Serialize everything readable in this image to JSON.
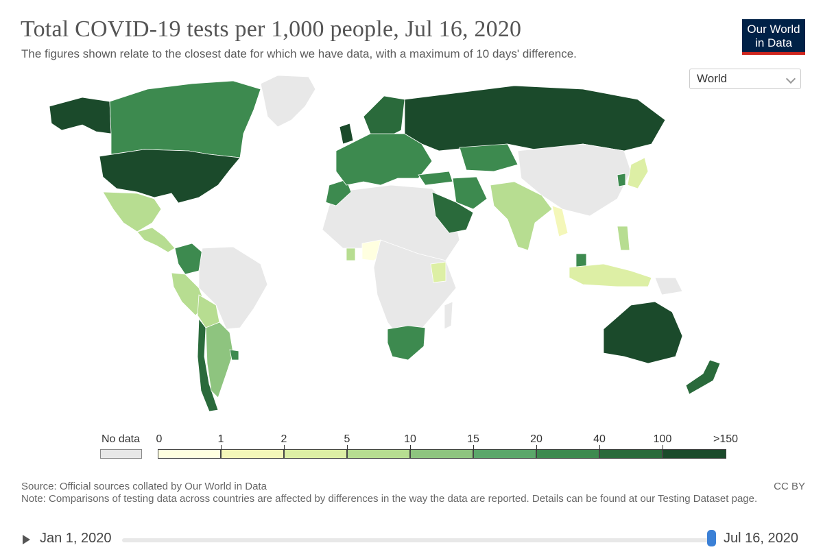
{
  "header": {
    "title": "Total COVID-19 tests per 1,000 people, Jul 16, 2020",
    "subtitle": "The figures shown relate to the closest date for which we have data, with a maximum of 10 days' difference."
  },
  "logo": {
    "line1": "Our World",
    "line2": "in Data"
  },
  "region_selector": {
    "selected": "World"
  },
  "legend": {
    "no_data_label": "No data",
    "thresholds": [
      "0",
      "1",
      "2",
      "5",
      "10",
      "15",
      "20",
      "40",
      "100",
      ">150"
    ],
    "colors": [
      "#ffffe0",
      "#f4f7b9",
      "#ddefa5",
      "#b7dd91",
      "#8ec47f",
      "#5ba76a",
      "#3d8a4f",
      "#2a6a3b",
      "#1b4a2b"
    ],
    "no_data_color": "#e8e8e8"
  },
  "footer": {
    "source": "Source: Official sources collated by Our World in Data",
    "note": "Note: Comparisons of testing data across countries are affected by differences in the way the data are reported. Details can be found at our Testing Dataset page.",
    "license": "CC BY"
  },
  "timeline": {
    "start": "Jan 1, 2020",
    "end": "Jul 16, 2020"
  },
  "map_regions": [
    {
      "name": "canada",
      "color": "#3d8a4f"
    },
    {
      "name": "alaska",
      "color": "#1b4a2b"
    },
    {
      "name": "greenland",
      "color": "#e8e8e8"
    },
    {
      "name": "usa",
      "color": "#1b4a2b"
    },
    {
      "name": "mexico",
      "color": "#b7dd91"
    },
    {
      "name": "central-america",
      "color": "#b7dd91"
    },
    {
      "name": "colombia",
      "color": "#3d8a4f"
    },
    {
      "name": "venezuela-brazil",
      "color": "#e8e8e8"
    },
    {
      "name": "peru",
      "color": "#b7dd91"
    },
    {
      "name": "bolivia",
      "color": "#b7dd91"
    },
    {
      "name": "chile",
      "color": "#2a6a3b"
    },
    {
      "name": "argentina",
      "color": "#8ec47f"
    },
    {
      "name": "uruguay",
      "color": "#3d8a4f"
    },
    {
      "name": "north-africa",
      "color": "#e8e8e8"
    },
    {
      "name": "morocco",
      "color": "#3d8a4f"
    },
    {
      "name": "nigeria",
      "color": "#ffffe0"
    },
    {
      "name": "ghana",
      "color": "#b7dd91"
    },
    {
      "name": "central-africa",
      "color": "#e8e8e8"
    },
    {
      "name": "kenya",
      "color": "#ddefa5"
    },
    {
      "name": "south-africa",
      "color": "#3d8a4f"
    },
    {
      "name": "madagascar",
      "color": "#e8e8e8"
    },
    {
      "name": "europe",
      "color": "#3d8a4f"
    },
    {
      "name": "uk",
      "color": "#1b4a2b"
    },
    {
      "name": "scandinavia",
      "color": "#2a6a3b"
    },
    {
      "name": "russia",
      "color": "#1b4a2b"
    },
    {
      "name": "kazakhstan",
      "color": "#3d8a4f"
    },
    {
      "name": "turkey",
      "color": "#3d8a4f"
    },
    {
      "name": "iran",
      "color": "#3d8a4f"
    },
    {
      "name": "saudi-arabia",
      "color": "#2a6a3b"
    },
    {
      "name": "india",
      "color": "#b7dd91"
    },
    {
      "name": "myanmar",
      "color": "#f4f7b9"
    },
    {
      "name": "china-mongolia",
      "color": "#e8e8e8"
    },
    {
      "name": "japan",
      "color": "#ddefa5"
    },
    {
      "name": "south-korea",
      "color": "#3d8a4f"
    },
    {
      "name": "philippines",
      "color": "#b7dd91"
    },
    {
      "name": "malaysia",
      "color": "#3d8a4f"
    },
    {
      "name": "indonesia",
      "color": "#ddefa5"
    },
    {
      "name": "papua-new-guinea",
      "color": "#e8e8e8"
    },
    {
      "name": "australia",
      "color": "#1b4a2b"
    },
    {
      "name": "new-zealand",
      "color": "#2a6a3b"
    }
  ]
}
